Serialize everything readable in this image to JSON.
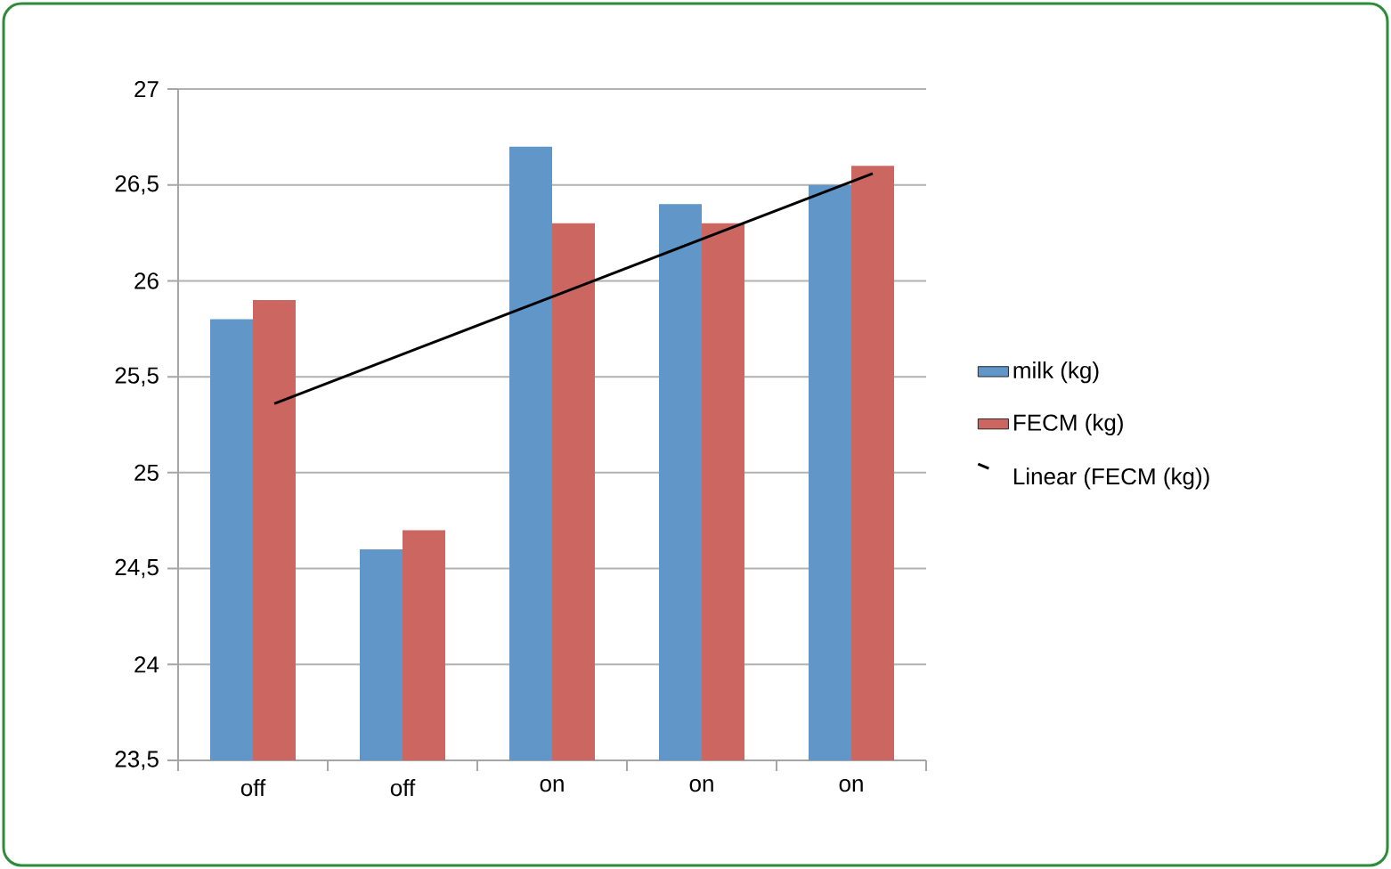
{
  "chart_data": {
    "type": "bar",
    "categories": [
      "off",
      "off",
      "on",
      "on",
      "on"
    ],
    "series": [
      {
        "name": "milk (kg)",
        "color": "#6096c8",
        "values": [
          25.8,
          24.6,
          26.7,
          26.4,
          26.5
        ]
      },
      {
        "name": "FECM (kg)",
        "color": "#cc6660",
        "values": [
          25.9,
          24.7,
          26.3,
          26.3,
          26.6
        ]
      },
      {
        "name": "Linear (FECM (kg))",
        "type": "line",
        "color": "#000000",
        "values": [
          25.36,
          25.66,
          25.96,
          26.26,
          26.56
        ]
      }
    ],
    "ylim": [
      23.5,
      27
    ],
    "yticks": [
      {
        "value": 23.5,
        "label": "23,5"
      },
      {
        "value": 24,
        "label": "24"
      },
      {
        "value": 24.5,
        "label": "24,5"
      },
      {
        "value": 25,
        "label": "25"
      },
      {
        "value": 25.5,
        "label": "25,5"
      },
      {
        "value": 26,
        "label": "26"
      },
      {
        "value": 26.5,
        "label": "26,5"
      },
      {
        "value": 27,
        "label": "27"
      }
    ],
    "grid": "y",
    "legend": "right"
  }
}
